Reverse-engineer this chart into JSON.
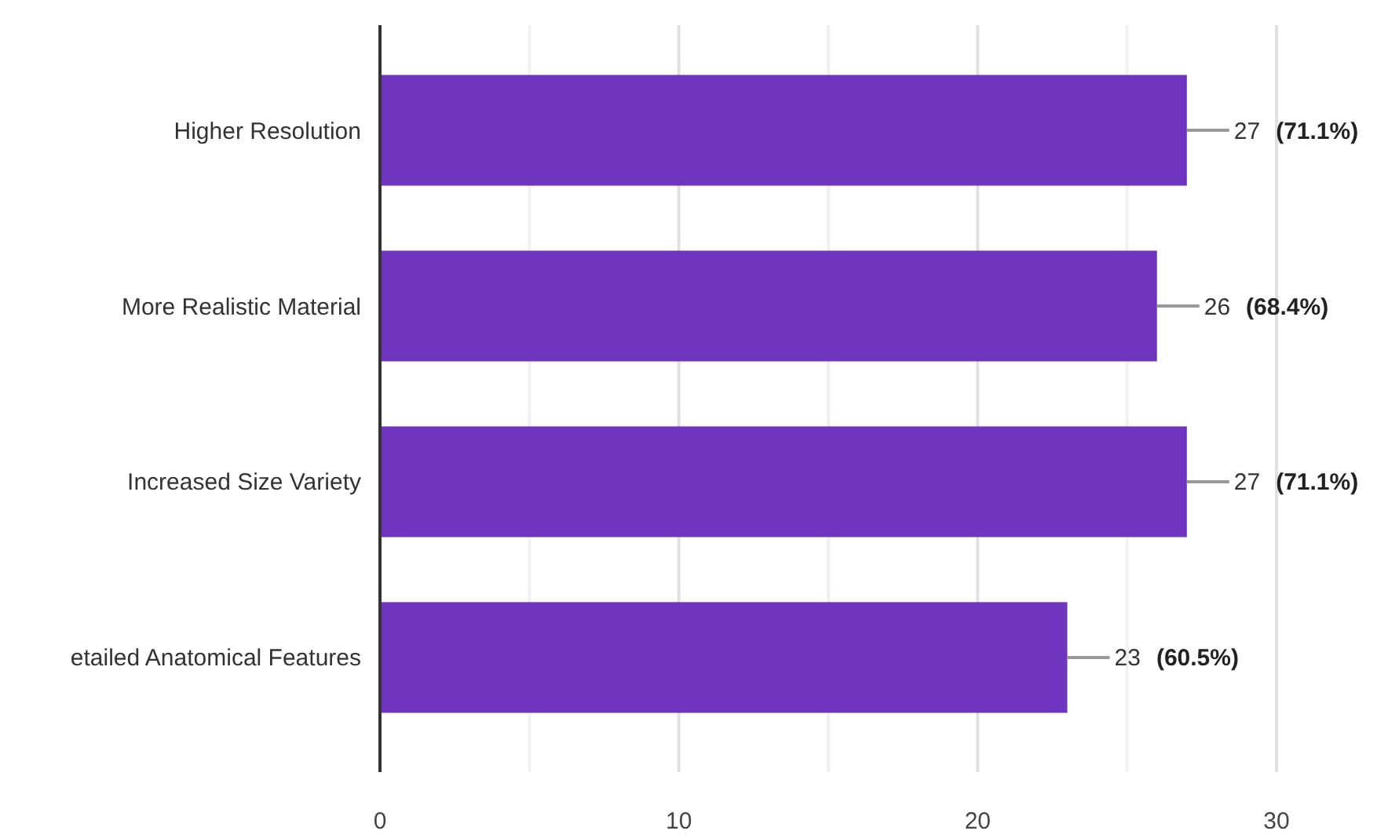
{
  "chart_data": {
    "type": "bar",
    "orientation": "horizontal",
    "categories": [
      "Higher Resolution",
      "More Realistic Material",
      "Increased Size Variety",
      "etailed Anatomical Features"
    ],
    "values": [
      27,
      26,
      27,
      23
    ],
    "value_labels": [
      "27 (71.1%)",
      "26 (68.4%)",
      "27 (71.1%)",
      "23 (60.5%)"
    ],
    "color": "#6f35bf",
    "xlim": [
      0,
      30
    ],
    "xticks": [
      0,
      {
        "value": 5,
        "label": null
      },
      10,
      {
        "value": 15,
        "label": null
      },
      20,
      {
        "value": 25,
        "label": null
      },
      30
    ],
    "grid": "x"
  }
}
